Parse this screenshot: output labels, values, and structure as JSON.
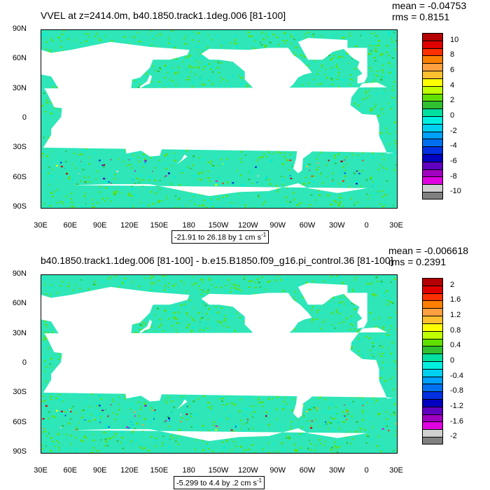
{
  "panels": [
    {
      "title": "VVEL at z=2414.0m, b40.1850.track1.1deg.006 [81-100]",
      "mean": "mean = -0.04753",
      "rms": "rms = 0.8151",
      "range": "-21.91 to 26.18 by 1 cm s",
      "range_sup": "-1",
      "y_labels": [
        "90N",
        "60N",
        "30N",
        "0",
        "30S",
        "60S",
        "90S"
      ],
      "x_labels": [
        "30E",
        "60E",
        "90E",
        "120E",
        "150E",
        "180",
        "150W",
        "120W",
        "90W",
        "60W",
        "30W",
        "0",
        "30E"
      ],
      "colorbar_labels": [
        "10",
        "8",
        "6",
        "4",
        "2",
        "0",
        "-2",
        "-4",
        "-6",
        "-8",
        "-10"
      ]
    },
    {
      "title": "b40.1850.track1.1deg.006 [81-100] - b.e15.B1850.f09_g16.pi_control.36 [81-100]",
      "mean": "mean = -0.006618",
      "rms": "rms = 0.2391",
      "range": "-5.299 to 4.4 by .2 cm s",
      "range_sup": "-1",
      "y_labels": [
        "90N",
        "60N",
        "30N",
        "0",
        "30S",
        "60S",
        "90S"
      ],
      "x_labels": [
        "30E",
        "60E",
        "90E",
        "120E",
        "150E",
        "180",
        "150W",
        "120W",
        "90W",
        "60W",
        "30W",
        "0",
        "30E"
      ],
      "colorbar_labels": [
        "2",
        "1.6",
        "1.2",
        "0.8",
        "0.4",
        "0",
        "-0.4",
        "-0.8",
        "-1.2",
        "-1.6",
        "-2"
      ]
    }
  ],
  "colors": {
    "palette": [
      "#b40000",
      "#e00000",
      "#ff3000",
      "#ff8000",
      "#ffa040",
      "#ffc030",
      "#ffff00",
      "#c0ff00",
      "#60e000",
      "#30c030",
      "#00e0a0",
      "#00f0e0",
      "#00d0f0",
      "#00a0ff",
      "#0070f0",
      "#0030e0",
      "#0000c0",
      "#6000c0",
      "#a000c0",
      "#e000e0",
      "#d0d0d0",
      "#808080"
    ],
    "ocean_base": "#2ee6b8",
    "land": "#ffffff"
  }
}
